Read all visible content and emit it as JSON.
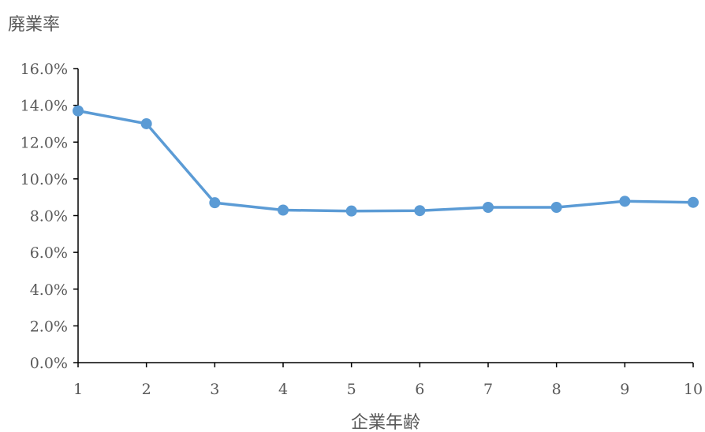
{
  "chart_data": {
    "type": "line",
    "xlabel": "企業年齢",
    "ylabel": "廃業率",
    "x": [
      1,
      2,
      3,
      4,
      5,
      6,
      7,
      8,
      9,
      10
    ],
    "y_tick_labels": [
      "0.0%",
      "2.0%",
      "4.0%",
      "6.0%",
      "8.0%",
      "10.0%",
      "12.0%",
      "14.0%",
      "16.0%"
    ],
    "x_tick_labels": [
      "1",
      "2",
      "3",
      "4",
      "5",
      "6",
      "7",
      "8",
      "9",
      "10"
    ],
    "ylim": [
      0,
      16
    ],
    "xlim": [
      1,
      10
    ],
    "y_unit": "%",
    "grid": false,
    "series": [
      {
        "color": "#5b9bd5",
        "values": [
          13.7,
          13.0,
          8.7,
          8.3,
          8.25,
          8.27,
          8.45,
          8.45,
          8.78,
          8.72
        ]
      }
    ]
  }
}
